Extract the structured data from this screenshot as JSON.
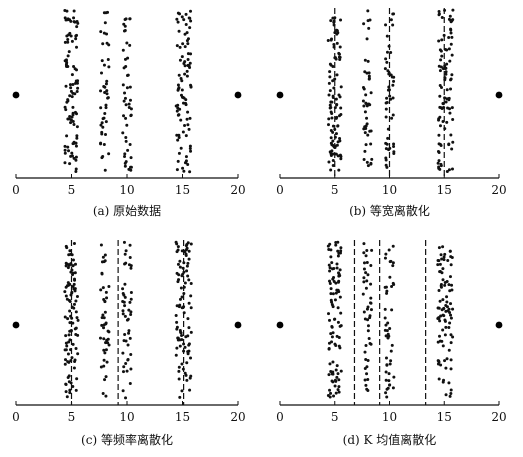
{
  "chart_data": [
    {
      "type": "scatter",
      "caption": "(a) 原始数据",
      "xlim": [
        0,
        20
      ],
      "xticks": [
        "0",
        "5",
        "10",
        "15",
        "20"
      ],
      "outliers": [
        0,
        20
      ],
      "clusters": [
        {
          "x_range": [
            4.4,
            5.6
          ],
          "count": 100
        },
        {
          "x_range": [
            7.6,
            8.4
          ],
          "count": 45
        },
        {
          "x_range": [
            9.6,
            10.4
          ],
          "count": 48
        },
        {
          "x_range": [
            14.4,
            15.8
          ],
          "count": 95
        }
      ],
      "split_points": []
    },
    {
      "type": "scatter",
      "caption": "(b) 等宽离散化",
      "xlim": [
        0,
        20
      ],
      "xticks": [
        "0",
        "5",
        "10",
        "15",
        "20"
      ],
      "outliers": [
        0,
        20
      ],
      "clusters": [
        {
          "x_range": [
            4.4,
            5.6
          ],
          "count": 100
        },
        {
          "x_range": [
            7.6,
            8.4
          ],
          "count": 45
        },
        {
          "x_range": [
            9.6,
            10.4
          ],
          "count": 48
        },
        {
          "x_range": [
            14.4,
            15.8
          ],
          "count": 95
        }
      ],
      "split_points": [
        5,
        10,
        15
      ]
    },
    {
      "type": "scatter",
      "caption": "(c) 等频率离散化",
      "xlim": [
        0,
        20
      ],
      "xticks": [
        "0",
        "5",
        "10",
        "15",
        "20"
      ],
      "outliers": [
        0,
        20
      ],
      "clusters": [
        {
          "x_range": [
            4.4,
            5.6
          ],
          "count": 100
        },
        {
          "x_range": [
            7.6,
            8.4
          ],
          "count": 45
        },
        {
          "x_range": [
            9.6,
            10.4
          ],
          "count": 48
        },
        {
          "x_range": [
            14.4,
            15.8
          ],
          "count": 95
        }
      ],
      "split_points": [
        5,
        9.2,
        15.1
      ]
    },
    {
      "type": "scatter",
      "caption": "(d) K 均值离散化",
      "xlim": [
        0,
        20
      ],
      "xticks": [
        "0",
        "5",
        "10",
        "15",
        "20"
      ],
      "outliers": [
        0,
        20
      ],
      "clusters": [
        {
          "x_range": [
            4.4,
            5.6
          ],
          "count": 100
        },
        {
          "x_range": [
            7.6,
            8.4
          ],
          "count": 45
        },
        {
          "x_range": [
            9.6,
            10.4
          ],
          "count": 48
        },
        {
          "x_range": [
            14.4,
            15.8
          ],
          "count": 95
        }
      ],
      "split_points": [
        6.8,
        9.1,
        13.3
      ]
    }
  ]
}
